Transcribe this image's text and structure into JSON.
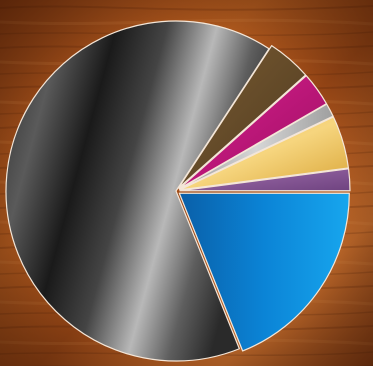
{
  "chart_data": {
    "type": "pie",
    "title": "",
    "legend": "none",
    "data_labels": false,
    "exploded": true,
    "background": "wood-texture",
    "slices": [
      {
        "value": 19.3,
        "color": "#0b84d6",
        "gradient": "metallic-blue"
      },
      {
        "value": 66.6,
        "color": "#3a3a3a",
        "gradient": "metallic-black"
      },
      {
        "value": 4.3,
        "color": "#6a5130",
        "gradient": "bronze"
      },
      {
        "value": 3.3,
        "color": "#c0187e",
        "gradient": "magenta"
      },
      {
        "value": 1.3,
        "color": "#b9b9b9",
        "gradient": "silver"
      },
      {
        "value": 5.1,
        "color": "#e9b847",
        "gradient": "gold"
      },
      {
        "value": 2.1,
        "color": "#8e5a9c",
        "gradient": "violet"
      }
    ]
  }
}
